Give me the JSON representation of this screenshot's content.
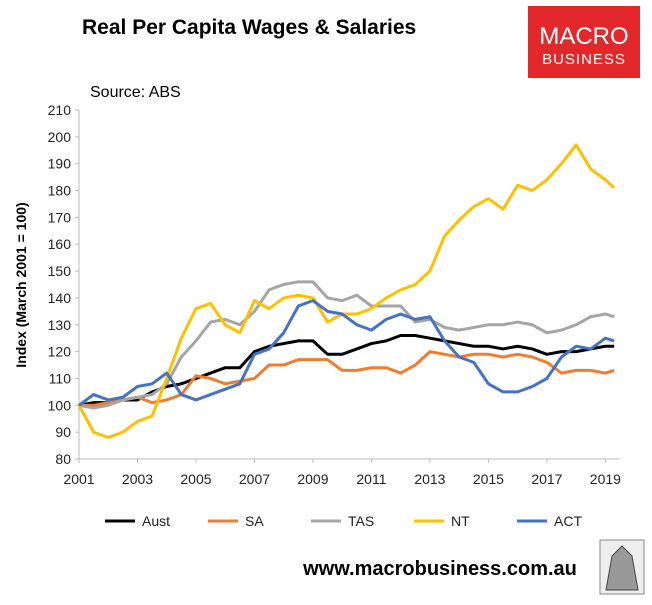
{
  "logo": [
    "MACRO",
    "BUSINESS"
  ],
  "footer": "www.macrobusiness.com.au",
  "chart_data": {
    "type": "line",
    "title": "Real Per Capita Wages & Salaries",
    "subtitle": "Source: ABS",
    "y_label": "Index (March 2001 = 100)",
    "x": [
      2001,
      2001.5,
      2002,
      2002.5,
      2003,
      2003.5,
      2004,
      2004.5,
      2005,
      2005.5,
      2006,
      2006.5,
      2007,
      2007.5,
      2008,
      2008.5,
      2009,
      2009.5,
      2010,
      2010.5,
      2011,
      2011.5,
      2012,
      2012.5,
      2013,
      2013.5,
      2014,
      2014.5,
      2015,
      2015.5,
      2016,
      2016.5,
      2017,
      2017.5,
      2018,
      2018.5,
      2019,
      2019.3
    ],
    "series": [
      {
        "name": "Aust",
        "color": "#000000",
        "values": [
          100,
          101,
          101,
          102,
          102,
          105,
          107,
          108,
          110,
          112,
          114,
          114,
          120,
          122,
          123,
          124,
          124,
          119,
          119,
          121,
          123,
          124,
          126,
          126,
          125,
          124,
          123,
          122,
          122,
          121,
          122,
          121,
          119,
          120,
          120,
          121,
          122,
          122
        ]
      },
      {
        "name": "SA",
        "color": "#ed7d31",
        "values": [
          100,
          100,
          101,
          102,
          103,
          101,
          102,
          104,
          111,
          110,
          108,
          109,
          110,
          115,
          115,
          117,
          117,
          117,
          113,
          113,
          114,
          114,
          112,
          115,
          120,
          119,
          118,
          119,
          119,
          118,
          119,
          118,
          116,
          112,
          113,
          113,
          112,
          113
        ]
      },
      {
        "name": "TAS",
        "color": "#a5a5a5",
        "values": [
          100,
          99,
          100,
          102,
          103,
          104,
          108,
          118,
          124,
          131,
          132,
          130,
          135,
          143,
          145,
          146,
          146,
          140,
          139,
          141,
          137,
          137,
          137,
          131,
          132,
          129,
          128,
          129,
          130,
          130,
          131,
          130,
          127,
          128,
          130,
          133,
          134,
          133
        ]
      },
      {
        "name": "NT",
        "color": "#ffc000",
        "values": [
          100,
          90,
          88,
          90,
          94,
          96,
          110,
          125,
          136,
          138,
          130,
          127,
          139,
          136,
          140,
          141,
          140,
          131,
          134,
          134,
          136,
          140,
          143,
          145,
          150,
          163,
          169,
          174,
          177,
          173,
          182,
          180,
          184,
          190,
          197,
          188,
          184,
          181
        ]
      },
      {
        "name": "ACT",
        "color": "#4472c4",
        "values": [
          100,
          104,
          102,
          103,
          107,
          108,
          112,
          104,
          102,
          104,
          106,
          108,
          119,
          121,
          127,
          137,
          139,
          135,
          134,
          130,
          128,
          132,
          134,
          132,
          133,
          124,
          118,
          116,
          108,
          105,
          105,
          107,
          110,
          118,
          122,
          121,
          125,
          124
        ]
      }
    ],
    "xlim": [
      2001,
      2019.5
    ],
    "xticks": [
      2001,
      2003,
      2005,
      2007,
      2009,
      2011,
      2013,
      2015,
      2017,
      2019
    ],
    "ylim": [
      80,
      210
    ],
    "yticks": [
      80,
      90,
      100,
      110,
      120,
      130,
      140,
      150,
      160,
      170,
      180,
      190,
      200,
      210
    ],
    "grid": false,
    "legend": "bottom"
  }
}
